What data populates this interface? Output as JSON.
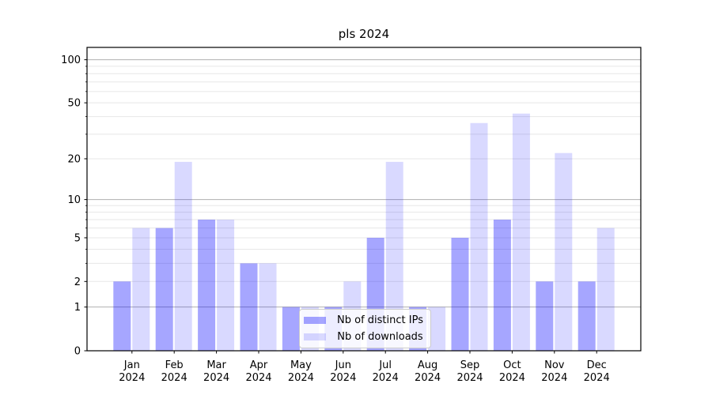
{
  "chart_data": {
    "type": "bar",
    "title": "pls 2024",
    "year": "2024",
    "categories": [
      "Jan",
      "Feb",
      "Mar",
      "Apr",
      "May",
      "Jun",
      "Jul",
      "Aug",
      "Sep",
      "Oct",
      "Nov",
      "Dec"
    ],
    "series": [
      {
        "name": "Nb of distinct IPs",
        "color": "rgba(0,0,255,0.35)",
        "values": [
          2,
          6,
          7,
          3,
          1,
          1,
          5,
          1,
          5,
          7,
          2,
          2
        ]
      },
      {
        "name": "Nb of downloads",
        "color": "rgba(0,0,255,0.15)",
        "values": [
          6,
          19,
          7,
          3,
          1,
          2,
          19,
          1,
          36,
          42,
          22,
          6
        ]
      }
    ],
    "y_scale": "log1p",
    "y_ticks": [
      0,
      1,
      2,
      5,
      10,
      20,
      50,
      100
    ],
    "y_minor_ticks": [
      3,
      4,
      6,
      7,
      8,
      9,
      30,
      40,
      60,
      70,
      80,
      90
    ],
    "ylim": [
      0,
      122
    ],
    "grid": true,
    "legend_position": "lower center",
    "colors": {
      "grid_major": "#b0b0b0",
      "grid_minor": "#e7e7e7",
      "axis": "#000000",
      "text": "#000000",
      "legend_border": "#cccccc",
      "legend_bg": "rgba(255,255,255,0.8)"
    }
  }
}
